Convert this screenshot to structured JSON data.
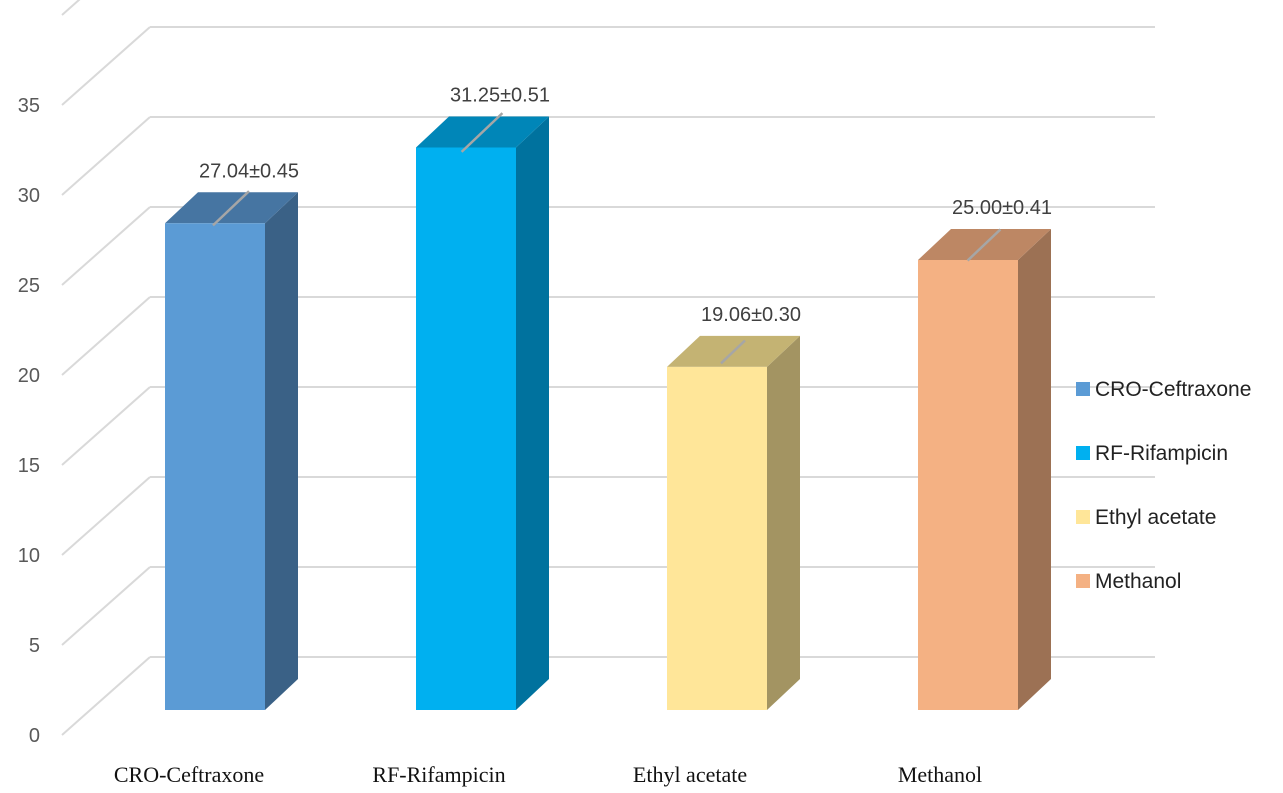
{
  "chart_data": {
    "type": "bar",
    "style": "3d-column",
    "categories": [
      "CRO-Ceftraxone",
      "RF-Rifampicin",
      "Ethyl acetate",
      "Methanol"
    ],
    "values": [
      27.04,
      31.25,
      19.06,
      25.0
    ],
    "errors": [
      0.45,
      0.51,
      0.3,
      0.41
    ],
    "data_labels": [
      "27.04±0.45",
      "31.25±0.51",
      "19.06±0.30",
      "25.00±0.41"
    ],
    "yticks": [
      "0",
      "5",
      "10",
      "15",
      "20",
      "25",
      "30",
      "35"
    ],
    "ylim": [
      0,
      35
    ],
    "grid": true,
    "legend": {
      "position": "right",
      "entries": [
        "CRO-Ceftraxone",
        "RF-Rifampicin",
        "Ethyl acetate",
        "Methanol"
      ]
    },
    "colors": {
      "front": [
        "#5B9BD5",
        "#00B0F0",
        "#FFE699",
        "#F4B183"
      ],
      "side": [
        "#3A6186",
        "#00729E",
        "#A39462",
        "#9C7154"
      ],
      "top": [
        "#4675A2",
        "#0086B8",
        "#C4B373",
        "#BD8764"
      ]
    },
    "gridline_color": "#D9D9D9",
    "errorbar_color": "#A6A6A6"
  }
}
